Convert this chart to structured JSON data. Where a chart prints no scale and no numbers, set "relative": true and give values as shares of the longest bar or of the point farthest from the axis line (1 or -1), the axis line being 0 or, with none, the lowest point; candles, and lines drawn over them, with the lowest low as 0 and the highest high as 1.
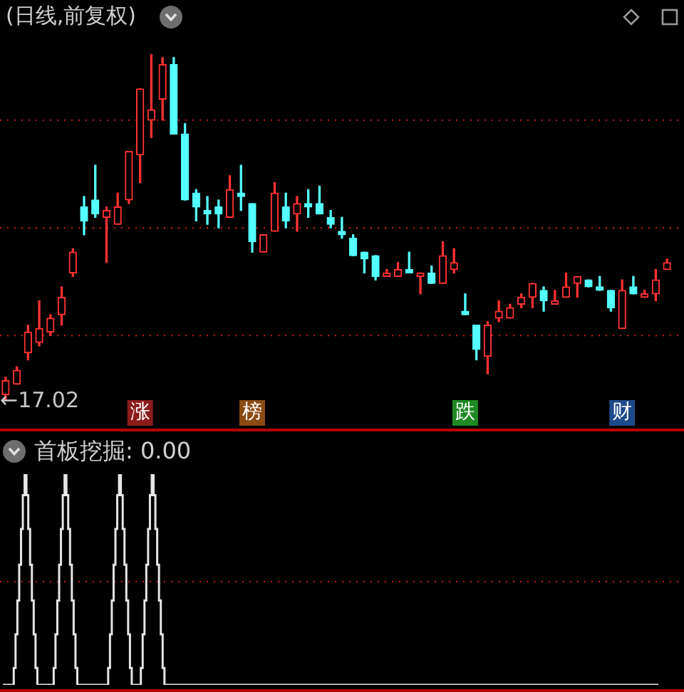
{
  "chart_data": [
    {
      "type": "candlestick",
      "title": "(日线,前复权)",
      "relative": true,
      "ref_lines": [
        {
          "axis": "y",
          "value": 0.19,
          "color": "#c81e1e",
          "line_style": "dotted"
        },
        {
          "axis": "y",
          "value": 0.5,
          "color": "#c81e1e",
          "line_style": "dotted"
        },
        {
          "axis": "y",
          "value": 0.81,
          "color": "#c81e1e",
          "line_style": "dotted"
        }
      ],
      "categories": [
        null,
        null,
        null,
        null,
        null,
        null,
        null,
        null,
        null,
        null,
        null,
        null,
        null,
        null,
        null,
        null,
        null,
        null,
        null,
        null,
        null,
        null,
        null,
        null,
        null,
        null,
        null,
        null,
        null,
        null,
        null,
        null,
        null,
        null,
        null,
        null,
        null,
        null,
        null,
        null,
        null,
        null,
        null,
        null,
        null,
        null,
        null,
        null,
        null,
        null,
        null,
        null,
        null,
        null,
        null,
        null,
        null,
        null,
        null,
        null
      ],
      "ohlc": [
        [
          0.02,
          0.07,
          0,
          0.06
        ],
        [
          0.05,
          0.1,
          0.05,
          0.09
        ],
        [
          0.14,
          0.22,
          0.12,
          0.2
        ],
        [
          0.17,
          0.29,
          0.16,
          0.21
        ],
        [
          0.2,
          0.25,
          0.19,
          0.24
        ],
        [
          0.25,
          0.33,
          0.22,
          0.3
        ],
        [
          0.37,
          0.44,
          0.36,
          0.43
        ],
        [
          0.56,
          0.59,
          0.48,
          0.52
        ],
        [
          0.58,
          0.68,
          0.53,
          0.54
        ],
        [
          0.53,
          0.56,
          0.4,
          0.55
        ],
        [
          0.51,
          0.6,
          0.51,
          0.56
        ],
        [
          0.58,
          0.72,
          0.57,
          0.72
        ],
        [
          0.71,
          0.9,
          0.63,
          0.9
        ],
        [
          0.81,
          1,
          0.76,
          0.84
        ],
        [
          0.87,
          0.99,
          0.81,
          0.97
        ],
        [
          0.97,
          0.99,
          0.77,
          0.77
        ],
        [
          0.77,
          0.8,
          0.58,
          0.58
        ],
        [
          0.6,
          0.61,
          0.52,
          0.56
        ],
        [
          0.55,
          0.59,
          0.51,
          0.54
        ],
        [
          0.56,
          0.58,
          0.5,
          0.54
        ],
        [
          0.53,
          0.65,
          0.53,
          0.61
        ],
        [
          0.6,
          0.68,
          0.55,
          0.59
        ],
        [
          0.57,
          0.57,
          0.43,
          0.46
        ],
        [
          0.43,
          0.48,
          0.43,
          0.48
        ],
        [
          0.49,
          0.63,
          0.49,
          0.6
        ],
        [
          0.56,
          0.6,
          0.5,
          0.52
        ],
        [
          0.54,
          0.59,
          0.49,
          0.57
        ],
        [
          0.57,
          0.61,
          0.53,
          0.56
        ],
        [
          0.57,
          0.62,
          0.54,
          0.54
        ],
        [
          0.53,
          0.55,
          0.5,
          0.51
        ],
        [
          0.49,
          0.53,
          0.47,
          0.48
        ],
        [
          0.47,
          0.48,
          0.42,
          0.42
        ],
        [
          0.43,
          0.43,
          0.37,
          0.41
        ],
        [
          0.42,
          0.42,
          0.35,
          0.36
        ],
        [
          0.36,
          0.38,
          0.36,
          0.37
        ],
        [
          0.36,
          0.4,
          0.36,
          0.38
        ],
        [
          0.38,
          0.43,
          0.37,
          0.37
        ],
        [
          0.36,
          0.37,
          0.31,
          0.37
        ],
        [
          0.37,
          0.39,
          0.34,
          0.34
        ],
        [
          0.34,
          0.46,
          0.34,
          0.42
        ],
        [
          0.38,
          0.44,
          0.37,
          0.4
        ],
        [
          0.26,
          0.31,
          0.25,
          0.25
        ],
        [
          0.22,
          0.22,
          0.12,
          0.15
        ],
        [
          0.13,
          0.23,
          0.08,
          0.22
        ],
        [
          0.24,
          0.29,
          0.23,
          0.26
        ],
        [
          0.24,
          0.28,
          0.24,
          0.27
        ],
        [
          0.28,
          0.31,
          0.27,
          0.3
        ],
        [
          0.3,
          0.34,
          0.27,
          0.34
        ],
        [
          0.32,
          0.33,
          0.26,
          0.29
        ],
        [
          0.28,
          0.32,
          0.28,
          0.29
        ],
        [
          0.3,
          0.37,
          0.3,
          0.33
        ],
        [
          0.34,
          0.36,
          0.3,
          0.36
        ],
        [
          0.35,
          0.35,
          0.33,
          0.33
        ],
        [
          0.33,
          0.36,
          0.32,
          0.32
        ],
        [
          0.32,
          0.32,
          0.26,
          0.27
        ],
        [
          0.21,
          0.35,
          0.21,
          0.32
        ],
        [
          0.33,
          0.36,
          0.31,
          0.31
        ],
        [
          0.3,
          0.32,
          0.3,
          0.31
        ],
        [
          0.31,
          0.38,
          0.29,
          0.35
        ],
        [
          0.38,
          0.41,
          0.38,
          0.4
        ]
      ],
      "colors": [
        "#ff3232",
        "#ff3232",
        "#ff3232",
        "#ff3232",
        "#ff3232",
        "#ff3232",
        "#ff3232",
        "#54ffff",
        "#54ffff",
        "#ff3232",
        "#ff3232",
        "#ff3232",
        "#ff3232",
        "#ff3232",
        "#ff3232",
        "#54ffff",
        "#54ffff",
        "#54ffff",
        "#54ffff",
        "#54ffff",
        "#ff3232",
        "#54ffff",
        "#54ffff",
        "#ff3232",
        "#ff3232",
        "#54ffff",
        "#ff3232",
        "#54ffff",
        "#54ffff",
        "#54ffff",
        "#54ffff",
        "#54ffff",
        "#54ffff",
        "#54ffff",
        "#ff3232",
        "#ff3232",
        "#54ffff",
        "#ff3232",
        "#54ffff",
        "#ff3232",
        "#ff3232",
        "#54ffff",
        "#54ffff",
        "#ff3232",
        "#ff3232",
        "#ff3232",
        "#ff3232",
        "#ff3232",
        "#54ffff",
        "#ff3232",
        "#ff3232",
        "#ff3232",
        "#54ffff",
        "#54ffff",
        "#54ffff",
        "#ff3232",
        "#54ffff",
        "#ff3232",
        "#ff3232",
        "#ff3232"
      ],
      "annotations": [
        "←17.02",
        "涨",
        "榜",
        "跌",
        "财"
      ]
    },
    {
      "type": "step",
      "title": "首板挖掘: 0.00",
      "relative": true,
      "color": "#e6e6e6",
      "ref_lines": [
        {
          "axis": "y",
          "value": 0.49,
          "color": "#c81e1e",
          "line_style": "dotted"
        }
      ],
      "categories": [
        null,
        null,
        null,
        null,
        null,
        null,
        null,
        null,
        null,
        null,
        null,
        null,
        null,
        null,
        null,
        null,
        null,
        null,
        null,
        null,
        null,
        null,
        null,
        null,
        null,
        null,
        null,
        null,
        null,
        null,
        null,
        null,
        null,
        null,
        null,
        null,
        null,
        null,
        null,
        null,
        null,
        null,
        null,
        null,
        null,
        null,
        null,
        null,
        null,
        null,
        null,
        null,
        null,
        null,
        null,
        null,
        null,
        null,
        null,
        null,
        null,
        null,
        null,
        null,
        null,
        null,
        null,
        null,
        null,
        null,
        null,
        null,
        null,
        null,
        null,
        null,
        null,
        null,
        null,
        null,
        null,
        null,
        null,
        null,
        null,
        null,
        null,
        null,
        null,
        null,
        null,
        null,
        null,
        null,
        null,
        null,
        null,
        null,
        null,
        null,
        null,
        null,
        null,
        null,
        null,
        null,
        null,
        null,
        null,
        null,
        null,
        null,
        null,
        null,
        null,
        null,
        null,
        null,
        null,
        null,
        null,
        null,
        null,
        null,
        null,
        null,
        null,
        null,
        null,
        null,
        null,
        null,
        null,
        null,
        null,
        null,
        null,
        null,
        null,
        null,
        null,
        null,
        null,
        null,
        null,
        null,
        null,
        null,
        null,
        null,
        null,
        null,
        null,
        null,
        null,
        null,
        null,
        null,
        null,
        null,
        null,
        null,
        null,
        null,
        null,
        null,
        null,
        null,
        null,
        null,
        null,
        null,
        null,
        null,
        null,
        null,
        null,
        null,
        null,
        null,
        null,
        null,
        null,
        null,
        null,
        null,
        null,
        null,
        null,
        null,
        null,
        null,
        null,
        null,
        null,
        null,
        null,
        null,
        null,
        null,
        null,
        null,
        null,
        null,
        null,
        null,
        null,
        null,
        null,
        null,
        null,
        null,
        null,
        null,
        null,
        null,
        null,
        null,
        null,
        null,
        null,
        null,
        null,
        null,
        null,
        null,
        null,
        null,
        null,
        null,
        null,
        null,
        null,
        null,
        null,
        null,
        null,
        null,
        null,
        null,
        null,
        null,
        null,
        null,
        null,
        null,
        null,
        null,
        null,
        null,
        null,
        null,
        null,
        null,
        null,
        null,
        null,
        null,
        null,
        null,
        null,
        null,
        null,
        null,
        null,
        null,
        null,
        null,
        null,
        null,
        null,
        null,
        null,
        null,
        null,
        null,
        null,
        null,
        null,
        null,
        null,
        null,
        null,
        null,
        null,
        null,
        null,
        null,
        null,
        null,
        null,
        null,
        null,
        null,
        null,
        null,
        null,
        null,
        null,
        null,
        null,
        null,
        null,
        null,
        null,
        null,
        null,
        null,
        null,
        null,
        null,
        null,
        null,
        null,
        null,
        null,
        null,
        null,
        null,
        null,
        null,
        null,
        null,
        null,
        null,
        null,
        null,
        null,
        null,
        null,
        null,
        null,
        null,
        null,
        null,
        null,
        null,
        null,
        null,
        null,
        null,
        null,
        null,
        null,
        null,
        null,
        null,
        null,
        null,
        null,
        null,
        null,
        null,
        null,
        null,
        null,
        null,
        null,
        null,
        null,
        null,
        null
      ],
      "values": [
        0,
        0,
        0,
        0,
        0,
        0,
        0.08,
        0.24,
        0.4,
        0.57,
        0.74,
        0.9,
        1,
        0.9,
        0.74,
        0.57,
        0.4,
        0.24,
        0.08,
        0,
        0,
        0,
        0,
        0,
        0,
        0,
        0,
        0,
        0.08,
        0.24,
        0.4,
        0.57,
        0.74,
        0.9,
        1,
        0.9,
        0.74,
        0.57,
        0.4,
        0.24,
        0.08,
        0,
        0,
        0,
        0,
        0,
        0,
        0,
        0,
        0,
        0,
        0,
        0,
        0,
        0,
        0,
        0,
        0,
        0.08,
        0.24,
        0.4,
        0.57,
        0.74,
        0.9,
        1,
        0.9,
        0.74,
        0.57,
        0.4,
        0.24,
        0.08,
        0,
        0,
        0,
        0,
        0,
        0.08,
        0.24,
        0.4,
        0.57,
        0.74,
        0.9,
        1,
        0.9,
        0.74,
        0.57,
        0.4,
        0.24,
        0.08,
        0,
        0,
        0,
        0,
        0,
        0,
        0,
        0,
        0,
        0,
        0,
        0,
        0,
        0,
        0,
        0,
        0,
        0,
        0,
        0,
        0,
        0,
        0,
        0,
        0,
        0,
        0,
        0,
        0,
        0,
        0,
        0,
        0,
        0,
        0,
        0,
        0,
        0,
        0,
        0,
        0,
        0,
        0,
        0,
        0,
        0,
        0,
        0,
        0,
        0,
        0,
        0,
        0,
        0,
        0,
        0,
        0,
        0,
        0,
        0,
        0,
        0,
        0,
        0,
        0,
        0,
        0,
        0,
        0,
        0,
        0,
        0,
        0,
        0,
        0,
        0,
        0,
        0,
        0,
        0,
        0,
        0,
        0,
        0,
        0,
        0,
        0,
        0,
        0,
        0,
        0,
        0,
        0,
        0,
        0,
        0,
        0,
        0,
        0,
        0,
        0,
        0,
        0,
        0,
        0,
        0,
        0,
        0,
        0,
        0,
        0,
        0,
        0,
        0,
        0,
        0,
        0,
        0,
        0,
        0,
        0,
        0,
        0,
        0,
        0,
        0,
        0,
        0,
        0,
        0,
        0,
        0,
        0,
        0,
        0,
        0,
        0,
        0,
        0,
        0,
        0,
        0,
        0,
        0,
        0,
        0,
        0,
        0,
        0,
        0,
        0,
        0,
        0,
        0,
        0,
        0,
        0,
        0,
        0,
        0,
        0,
        0,
        0,
        0,
        0,
        0,
        0,
        0,
        0,
        0,
        0,
        0,
        0,
        0,
        0,
        0,
        0,
        0,
        0,
        0,
        0,
        0,
        0,
        0,
        0,
        0,
        0,
        0,
        0,
        0,
        0,
        0,
        0,
        0,
        0,
        0,
        0,
        0,
        0,
        0,
        0,
        0,
        0,
        0,
        0,
        0,
        0,
        0,
        0,
        0,
        0,
        0,
        0,
        0,
        0,
        0,
        0,
        0,
        0,
        0,
        0,
        0,
        0,
        0,
        0,
        0,
        0,
        0,
        0,
        0,
        0,
        0,
        0,
        0,
        0,
        0,
        0,
        0,
        0,
        0,
        0,
        0,
        0,
        0,
        0,
        0,
        0,
        0,
        0,
        0,
        0,
        0,
        0,
        0,
        0,
        0,
        0,
        0,
        0,
        0,
        0,
        0,
        0,
        0,
        0,
        0,
        0,
        0,
        0,
        0,
        0,
        0,
        0
      ]
    }
  ]
}
